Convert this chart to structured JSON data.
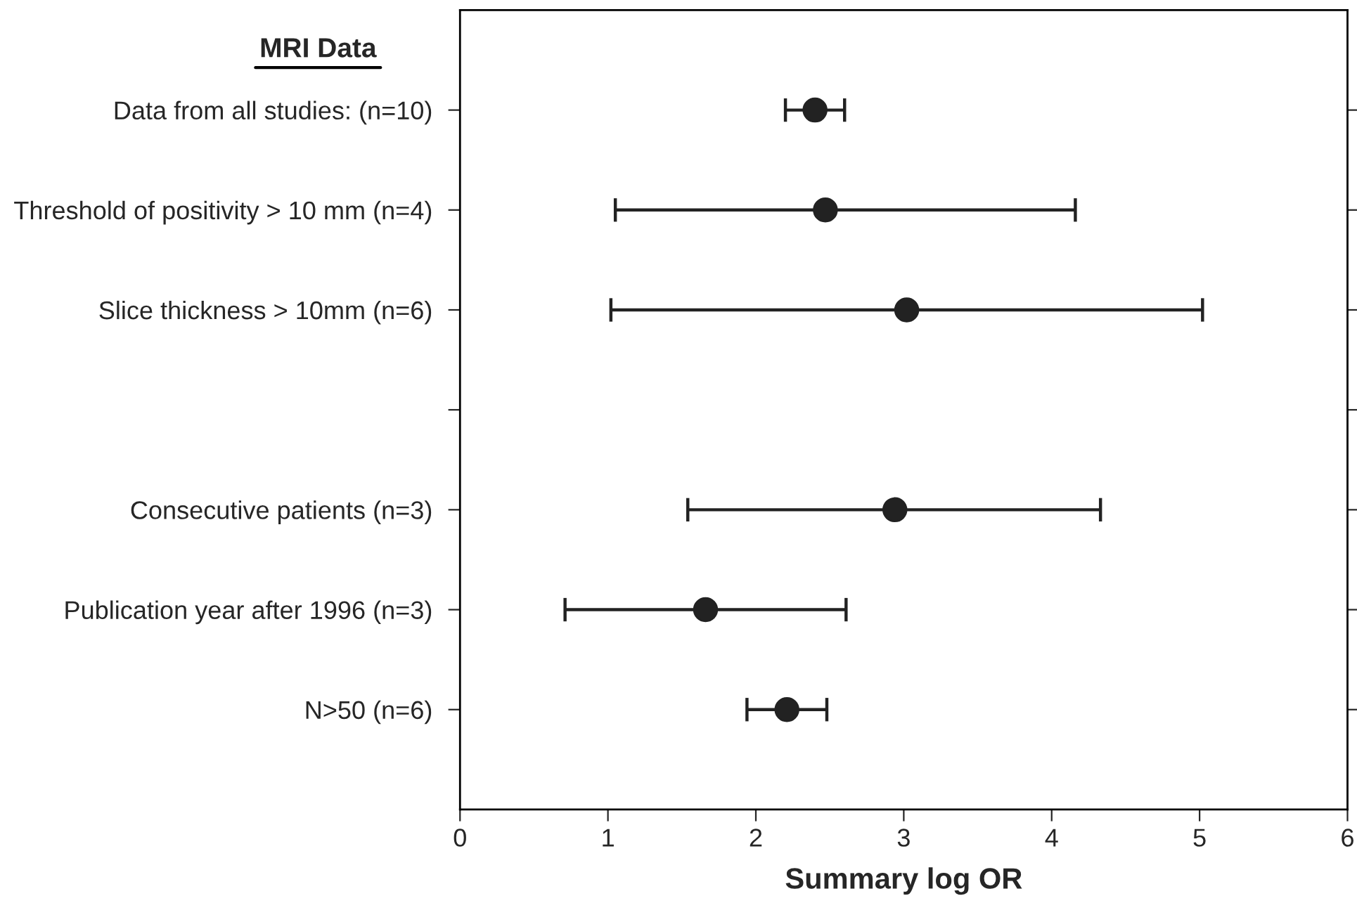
{
  "chart_data": {
    "type": "scatter",
    "orientation": "horizontal",
    "xlabel": "Summary log OR",
    "annotations": [
      "MRI Data"
    ],
    "categories": [
      "Data from all studies: (n=10)",
      "Threshold of positivity > 10 mm (n=4)",
      "Slice thickness > 10mm (n=6)",
      null,
      "Consecutive patients (n=3)",
      "Publication year after 1996 (n=3)",
      "N>50 (n=6)"
    ],
    "series": [
      {
        "color": "#222222",
        "values": [
          2.4,
          2.47,
          3.02,
          null,
          2.94,
          1.66,
          2.21
        ],
        "errors": [
          [
            2.2,
            2.6
          ],
          [
            1.05,
            4.16
          ],
          [
            1.02,
            5.02
          ],
          null,
          [
            1.54,
            4.33
          ],
          [
            0.71,
            2.61
          ],
          [
            1.94,
            2.48
          ]
        ]
      }
    ],
    "xlim": [
      0,
      6
    ],
    "xticks": [
      0,
      1,
      2,
      3,
      4,
      5,
      6
    ],
    "marker": "circle",
    "grid": false,
    "legend": false
  }
}
